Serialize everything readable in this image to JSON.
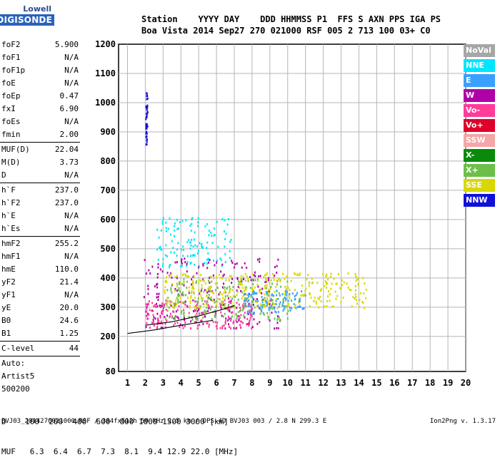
{
  "logo": {
    "line1": "Lowell",
    "line2": "DIGISONDE"
  },
  "header": {
    "labels": "Station    YYYY DAY    DDD HHMMSS P1  FFS S AXN PPS IGA PS",
    "values": "Boa Vista 2014 Sep27 270 021000 RSF 005 2 713 100 03+ C0"
  },
  "params": [
    {
      "name": "foF2",
      "value": "5.900"
    },
    {
      "name": "foF1",
      "value": "N/A"
    },
    {
      "name": "foF1p",
      "value": "N/A"
    },
    {
      "name": "foE",
      "value": "N/A"
    },
    {
      "name": "foEp",
      "value": "0.47"
    },
    {
      "name": "fxI",
      "value": "6.90"
    },
    {
      "name": "foEs",
      "value": "N/A"
    },
    {
      "name": "fmin",
      "value": "2.00"
    },
    {
      "sep": true
    },
    {
      "name": "MUF(D)",
      "value": "22.04"
    },
    {
      "name": "M(D)",
      "value": "3.73"
    },
    {
      "name": "D",
      "value": "N/A"
    },
    {
      "sep": true
    },
    {
      "name": "h`F",
      "value": "237.0"
    },
    {
      "name": "h`F2",
      "value": "237.0"
    },
    {
      "name": "h`E",
      "value": "N/A"
    },
    {
      "name": "h`Es",
      "value": "N/A"
    },
    {
      "sep": true
    },
    {
      "name": "hmF2",
      "value": "255.2"
    },
    {
      "name": "hmF1",
      "value": "N/A"
    },
    {
      "name": "hmE",
      "value": "110.0"
    },
    {
      "name": "yF2",
      "value": "21.4"
    },
    {
      "name": "yF1",
      "value": "N/A"
    },
    {
      "name": "yE",
      "value": "20.0"
    },
    {
      "name": "B0",
      "value": "24.6"
    },
    {
      "name": "B1",
      "value": "1.25"
    },
    {
      "sep": true
    },
    {
      "name": "C-level",
      "value": "44"
    },
    {
      "sep": true
    },
    {
      "name": "Auto:",
      "value": ""
    },
    {
      "name": "Artist5",
      "value": ""
    },
    {
      "name": "500200",
      "value": ""
    }
  ],
  "legend": [
    {
      "label": "NoVal",
      "color": "#a6a6a6"
    },
    {
      "label": "NNE",
      "color": "#00e5ff"
    },
    {
      "label": "E",
      "color": "#3aa0ff"
    },
    {
      "label": "W",
      "color": "#b000a8"
    },
    {
      "label": "Vo-",
      "color": "#ff3c9a"
    },
    {
      "label": "Vo+",
      "color": "#e0002a"
    },
    {
      "label": "SSW",
      "color": "#f5a6a6"
    },
    {
      "label": "X-",
      "color": "#0a8a0a"
    },
    {
      "label": "X+",
      "color": "#6cc04a"
    },
    {
      "label": "SSE",
      "color": "#d8d800"
    },
    {
      "label": "NNW",
      "color": "#1010d8"
    }
  ],
  "chart_data": {
    "type": "scatter",
    "xlim": [
      0.5,
      20
    ],
    "ylim": [
      80,
      1200
    ],
    "xticks": [
      "1",
      "2",
      "3",
      "4",
      "5",
      "6",
      "7",
      "8",
      "9",
      "10",
      "11",
      "12",
      "13",
      "14",
      "15",
      "16",
      "17",
      "18",
      "19",
      "20"
    ],
    "yticks": [
      "80",
      "200",
      "300",
      "400",
      "500",
      "600",
      "700",
      "800",
      "900",
      "1000",
      "1100",
      "1200"
    ],
    "grid": true,
    "legend_placement": "right",
    "traces": [
      {
        "name": "NNE",
        "x_range": [
          2.6,
          6.9
        ],
        "y_range": [
          440,
          610
        ]
      },
      {
        "name": "NNW",
        "x_range": [
          2.0,
          2.1
        ],
        "y_range": [
          860,
          1040
        ]
      },
      {
        "name": "W",
        "x_range": [
          1.9,
          9.6
        ],
        "y_range": [
          230,
          470
        ]
      },
      {
        "name": "Vo-",
        "x_range": [
          2.0,
          8.0
        ],
        "y_range": [
          230,
          330
        ]
      },
      {
        "name": "X+",
        "x_range": [
          3.0,
          10.0
        ],
        "y_range": [
          260,
          400
        ]
      },
      {
        "name": "SSE",
        "x_range": [
          3.0,
          14.4
        ],
        "y_range": [
          300,
          420
        ]
      },
      {
        "name": "E",
        "x_range": [
          7.5,
          11.0
        ],
        "y_range": [
          280,
          360
        ]
      }
    ],
    "fit_curves": [
      {
        "points": [
          [
            1.0,
            210
          ],
          [
            2.5,
            222
          ],
          [
            4.0,
            238
          ],
          [
            5.8,
            255
          ]
        ]
      },
      {
        "points": [
          [
            2.0,
            238
          ],
          [
            3.5,
            250
          ],
          [
            5.0,
            270
          ],
          [
            6.2,
            290
          ],
          [
            7.0,
            305
          ]
        ]
      }
    ]
  },
  "dtable": {
    "d_row": "D    100  200  400  600  800 1000 1500 3000 [km]",
    "muf_row": "MUF   6.3  6.4  6.7  7.3  8.1  9.4 12.9 22.0 [MHz]"
  },
  "footer": {
    "file": "BVJ03_2014270021000.RSF / 384fx512h 50 kHz 2.5 km / DPS-4D BVJ03 003 / 2.8 N 299.3 E",
    "version": "Ion2Png v. 1.3.17"
  }
}
